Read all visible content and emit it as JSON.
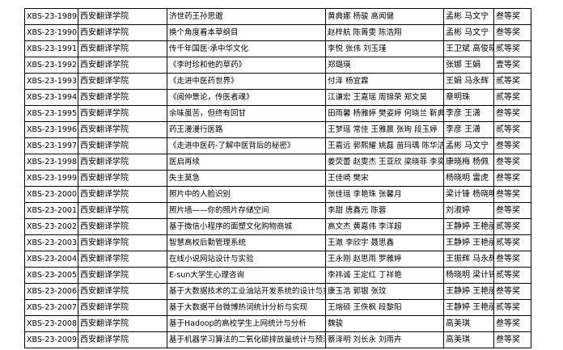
{
  "table": {
    "rows": [
      [
        "XBS-23-1989",
        "西安翻译学院",
        "济世药王孙思邈",
        "黄典娜 杨骏 高闻健",
        "孟彬 马文宁",
        "叁等奖"
      ],
      [
        "XBS-23-1990",
        "西安翻译学院",
        "换个角度看本草纲目",
        "赵梓航 陈菁雯 陈浩翔",
        "孟彬 马文宁",
        "叁等奖"
      ],
      [
        "XBS-23-1991",
        "西安翻译学院",
        "传千年国医·承中华文化",
        "李悦 张伟 刘玉瑾",
        "王卫斌 高俊晓",
        "贰等奖"
      ],
      [
        "XBS-23-1992",
        "西安翻译学院",
        "《李时珍和他的草药》",
        "郑璐瑛",
        "张娜 王娟",
        "壹等奖"
      ],
      [
        "XBS-23-1993",
        "西安翻译学院",
        "《走进中医药世界》",
        "付泽 杨宜霖",
        "王娟 马永辉",
        "贰等奖"
      ],
      [
        "XBS-23-1994",
        "西安翻译学院",
        "《阅仲景论，传医者魂》",
        "江谦宏 王嘉瑶 周锦荣 郑文昊",
        "章明珠",
        "贰等奖"
      ],
      [
        "XBS-23-1995",
        "西安翻译学院",
        "余味虽苦，但终有回甘",
        "田雨馨 杨雅婷 樊姿婷 何晓兰 靳典",
        "李彦 王潇",
        "叁等奖"
      ],
      [
        "XBS-23-1996",
        "西安翻译学院",
        "药王漫漫行医路",
        "王梦瑶 常佳 王雅晨 张珣 段玉婷",
        "李彦 王潇",
        "贰等奖"
      ],
      [
        "XBS-23-1997",
        "西安翻译学院",
        "《走进中医药-了解中医背后的秘密》",
        "王嘉远 郭熙耀 姚磊 苗玛瑀 陈华洁",
        "孟彬 马文宁",
        "叁等奖"
      ],
      [
        "XBS-23-1998",
        "西安翻译学院",
        "医启再续",
        "姜荧蕾 赵雯杰 王亚欣 梁晓菲 李奕斐",
        "康晓梅 杨佩",
        "叁等奖"
      ],
      [
        "XBS-23-1999",
        "西安翻译学院",
        "失主莫急",
        "王佳崎 樊宋",
        "杨晓明 雷虎",
        "叁等奖"
      ],
      [
        "XBS-23-2000",
        "西安翻译学院",
        "照片中的人脸识别",
        "张佳瑶 李艳珠 张馨月",
        "梁计锋 杨晓明",
        "叁等奖"
      ],
      [
        "XBS-23-2001",
        "西安翻译学院",
        "照片墙——你的照片存储空间",
        "李甜 唐鑫元 陈蓉",
        "刘淑婷",
        "叁等奖"
      ],
      [
        "XBS-23-2002",
        "西安翻译学院",
        "基于微信小程序的面塑文化购物商城",
        "高文杰 黄嘉伟 李洋超",
        "王静婷 王艳丽",
        "贰等奖"
      ],
      [
        "XBS-23-2003",
        "西安翻译学院",
        "智慧高校后勤管理系统",
        "王澈 李欣宇 聂思鑫",
        "王静婷 王艳丽",
        "贰等奖"
      ],
      [
        "XBS-23-2004",
        "西安翻译学院",
        "在线小说网站设计与实验",
        "王永刚 赵思雨 罗雅婷",
        "王振辉 马永辉",
        "叁等奖"
      ],
      [
        "XBS-23-2005",
        "西安翻译学院",
        "E-sun大学生心理咨询",
        "李祎诚 王定红 丁祥艳",
        "杨晓明 梁计锋",
        "贰等奖"
      ],
      [
        "XBS-23-2006",
        "西安翻译学院",
        "基于大数据技术的工业油站开发系统的设计与实现",
        "康玉浩 郭银 张玟",
        "王静婷 王艳丽",
        "叁等奖"
      ],
      [
        "XBS-23-2007",
        "西安翻译学院",
        "基于大数据平台微博热词统计分析与实现",
        "王熔硕 王佚枫 段黎阳",
        "王静婷 王艳丽",
        "贰等奖"
      ],
      [
        "XBS-23-2008",
        "西安翻译学院",
        "基于Hadoop的高校学生上网统计与分析",
        "魏骏",
        "高美琪",
        "叁等奖"
      ],
      [
        "XBS-23-2009",
        "西安翻译学院",
        "基于机器学习算法的二氧化碳排放量统计与预测",
        "蔡泽明 刘长永 刘雨卉",
        "高美琪",
        "叁等奖"
      ]
    ]
  }
}
